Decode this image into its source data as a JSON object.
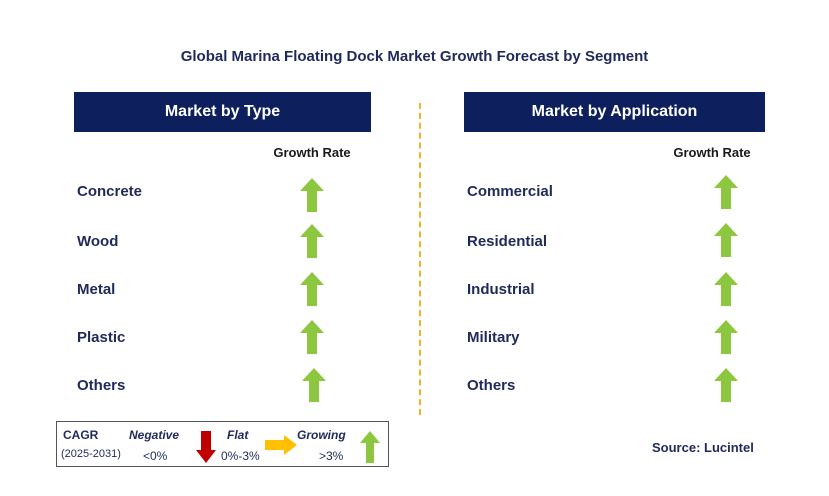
{
  "title": "Global Marina Floating Dock Market Growth Forecast by Segment",
  "left_panel": {
    "header": "Market by Type",
    "growth_label": "Growth Rate",
    "rows": [
      {
        "label": "Concrete",
        "trend": "growing"
      },
      {
        "label": "Wood",
        "trend": "growing"
      },
      {
        "label": "Metal",
        "trend": "growing"
      },
      {
        "label": "Plastic",
        "trend": "growing"
      },
      {
        "label": "Others",
        "trend": "growing"
      }
    ]
  },
  "right_panel": {
    "header": "Market by Application",
    "growth_label": "Growth Rate",
    "rows": [
      {
        "label": "Commercial",
        "trend": "growing"
      },
      {
        "label": "Residential",
        "trend": "growing"
      },
      {
        "label": "Industrial",
        "trend": "growing"
      },
      {
        "label": "Military",
        "trend": "growing"
      },
      {
        "label": "Others",
        "trend": "growing"
      }
    ]
  },
  "legend": {
    "cagr": "CAGR",
    "period": "(2025-2031)",
    "negative_label": "Negative",
    "negative_range": "<0%",
    "flat_label": "Flat",
    "flat_range": "0%-3%",
    "growing_label": "Growing",
    "growing_range": ">3%"
  },
  "source": "Source: Lucintel",
  "colors": {
    "header_bg": "#0d1f5c",
    "growing_arrow": "#8dc63f",
    "negative_arrow": "#c00000",
    "flat_arrow": "#ffc000",
    "divider": "#f0b428"
  }
}
